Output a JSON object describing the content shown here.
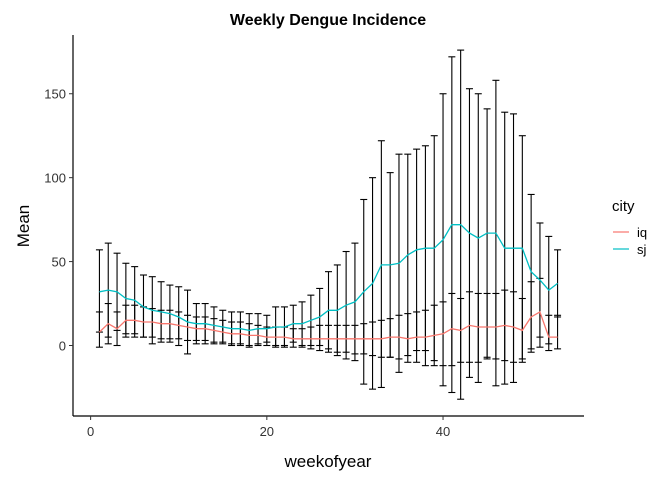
{
  "chart_data": {
    "type": "line",
    "title": "Weekly Dengue Incidence",
    "xlabel": "weekofyear",
    "ylabel": "Mean",
    "xlim": [
      -2,
      56
    ],
    "ylim": [
      -42,
      185
    ],
    "x_ticks": [
      0,
      20,
      40
    ],
    "y_ticks": [
      0,
      50,
      100,
      150
    ],
    "grid": false,
    "legend": {
      "title": "city",
      "placement": "right"
    },
    "weeks": [
      1,
      2,
      3,
      4,
      5,
      6,
      7,
      8,
      9,
      10,
      11,
      12,
      13,
      14,
      15,
      16,
      17,
      18,
      19,
      20,
      21,
      22,
      23,
      24,
      25,
      26,
      27,
      28,
      29,
      30,
      31,
      32,
      33,
      34,
      35,
      36,
      37,
      38,
      39,
      40,
      41,
      42,
      43,
      44,
      45,
      46,
      47,
      48,
      49,
      50,
      51,
      52,
      53
    ],
    "series": [
      {
        "name": "iq",
        "color": "#F8766D",
        "values": [
          8,
          13,
          10,
          15,
          15,
          14,
          14,
          13,
          13,
          12,
          11,
          10,
          10,
          9,
          8,
          7,
          7,
          6,
          6,
          5,
          5,
          5,
          4,
          4,
          4,
          4,
          4,
          4,
          4,
          4,
          4,
          4,
          4,
          5,
          5,
          4,
          5,
          5,
          6,
          7,
          10,
          9,
          12,
          11,
          11,
          11,
          12,
          11,
          9,
          17,
          20,
          5,
          5
        ],
        "upper": [
          20,
          25,
          20,
          24,
          24,
          23,
          22,
          21,
          21,
          20,
          18,
          17,
          17,
          16,
          15,
          14,
          14,
          13,
          12,
          11,
          11,
          11,
          10,
          10,
          11,
          12,
          12,
          12,
          12,
          12,
          13,
          14,
          15,
          16,
          18,
          19,
          20,
          21,
          24,
          26,
          31,
          28,
          32,
          31,
          31,
          31,
          33,
          32,
          28,
          38,
          40,
          18,
          18
        ],
        "lower": [
          -1,
          1,
          0,
          5,
          5,
          5,
          5,
          4,
          4,
          4,
          3,
          3,
          3,
          2,
          2,
          1,
          1,
          0,
          0,
          0,
          0,
          0,
          -1,
          -1,
          -2,
          -3,
          -4,
          -4,
          -4,
          -5,
          -5,
          -6,
          -7,
          -7,
          -8,
          -10,
          -10,
          -12,
          -12,
          -12,
          -12,
          -10,
          -10,
          -10,
          -8,
          -8,
          -9,
          -10,
          -10,
          -4,
          -1,
          -3,
          -2
        ]
      },
      {
        "name": "sj",
        "color": "#00BFC4",
        "values": [
          32,
          33,
          32,
          28,
          27,
          23,
          21,
          20,
          19,
          17,
          14,
          13,
          13,
          12,
          11,
          10,
          10,
          9,
          10,
          10,
          11,
          11,
          13,
          13,
          15,
          17,
          21,
          21,
          24,
          26,
          32,
          37,
          48,
          48,
          49,
          54,
          57,
          58,
          58,
          63,
          72,
          72,
          67,
          64,
          67,
          67,
          58,
          58,
          58,
          44,
          39,
          33,
          37
        ],
        "upper": [
          57,
          61,
          55,
          49,
          47,
          42,
          41,
          38,
          36,
          35,
          33,
          25,
          25,
          23,
          21,
          20,
          20,
          19,
          19,
          18,
          23,
          23,
          24,
          26,
          30,
          34,
          44,
          48,
          56,
          61,
          87,
          100,
          122,
          103,
          114,
          114,
          117,
          119,
          125,
          150,
          172,
          176,
          153,
          150,
          141,
          158,
          139,
          138,
          125,
          90,
          73,
          65,
          57
        ],
        "lower": [
          8,
          5,
          9,
          7,
          7,
          5,
          1,
          2,
          2,
          0,
          -5,
          1,
          1,
          1,
          1,
          0,
          0,
          -1,
          1,
          2,
          -1,
          -1,
          2,
          0,
          0,
          0,
          -2,
          -6,
          -8,
          -9,
          -23,
          -26,
          -25,
          -7,
          -16,
          -6,
          -3,
          -3,
          -9,
          -24,
          -28,
          -32,
          -19,
          -22,
          -7,
          -24,
          -23,
          -22,
          -8,
          -2,
          5,
          1,
          17
        ]
      }
    ]
  }
}
